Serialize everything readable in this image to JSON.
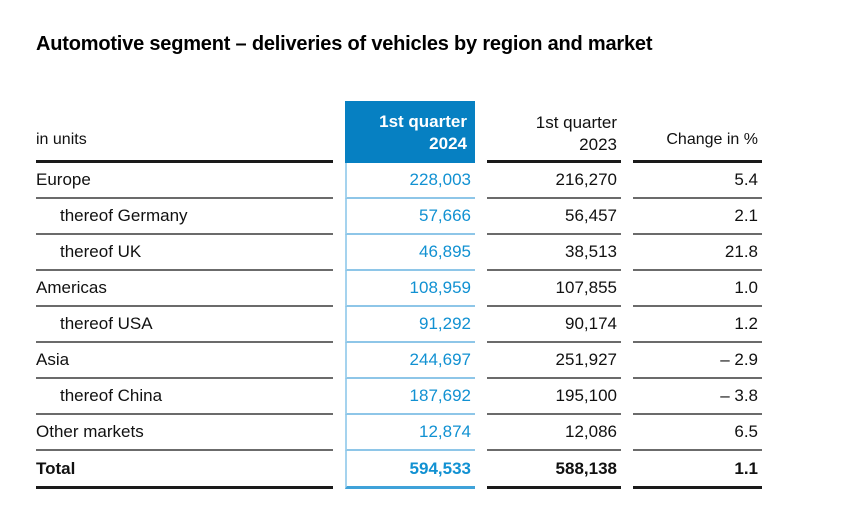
{
  "title": "Automotive segment – deliveries of vehicles by region and market",
  "table": {
    "unit_label": "in units",
    "col_2024": {
      "line1": "1st quarter",
      "line2": "2024"
    },
    "col_2023": {
      "line1": "1st quarter",
      "line2": "2023"
    },
    "col_change": {
      "label": "Change in %"
    },
    "rows": [
      {
        "label": "Europe",
        "indent": false,
        "bold": false,
        "q1_2024": "228,003",
        "q1_2023": "216,270",
        "change": "5.4"
      },
      {
        "label": "thereof Germany",
        "indent": true,
        "bold": false,
        "q1_2024": "57,666",
        "q1_2023": "56,457",
        "change": "2.1"
      },
      {
        "label": "thereof UK",
        "indent": true,
        "bold": false,
        "q1_2024": "46,895",
        "q1_2023": "38,513",
        "change": "21.8"
      },
      {
        "label": "Americas",
        "indent": false,
        "bold": false,
        "q1_2024": "108,959",
        "q1_2023": "107,855",
        "change": "1.0"
      },
      {
        "label": "thereof USA",
        "indent": true,
        "bold": false,
        "q1_2024": "91,292",
        "q1_2023": "90,174",
        "change": "1.2"
      },
      {
        "label": "Asia",
        "indent": false,
        "bold": false,
        "q1_2024": "244,697",
        "q1_2023": "251,927",
        "change": "– 2.9"
      },
      {
        "label": "thereof China",
        "indent": true,
        "bold": false,
        "q1_2024": "187,692",
        "q1_2023": "195,100",
        "change": "– 3.8"
      },
      {
        "label": "Other markets",
        "indent": false,
        "bold": false,
        "q1_2024": "12,874",
        "q1_2023": "12,086",
        "change": "6.5"
      },
      {
        "label": "Total",
        "indent": false,
        "bold": true,
        "q1_2024": "594,533",
        "q1_2023": "588,138",
        "change": "1.1"
      }
    ]
  },
  "colors": {
    "highlight_blue": "#0680c2",
    "value_blue": "#1191d2",
    "light_blue_line": "#8ec6e8",
    "vertical_blue_line": "#a5d3ee",
    "total_blue_line": "#3fa2d9",
    "row_line_gray": "#6b6b6b",
    "strong_line": "#1a1a1a"
  }
}
